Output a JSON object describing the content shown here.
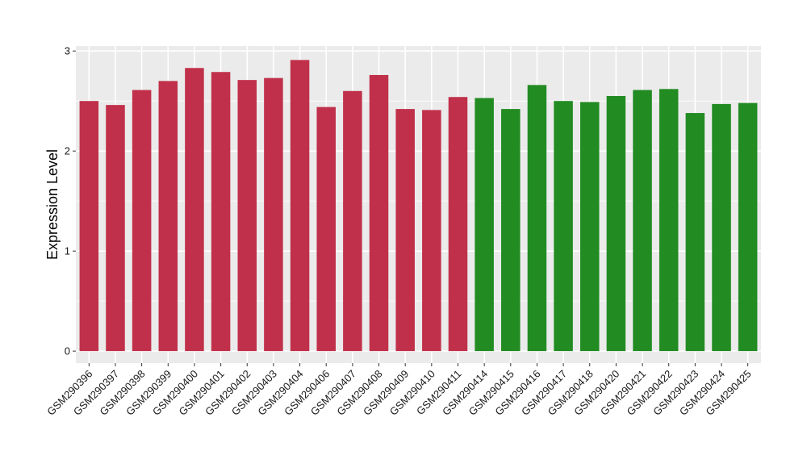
{
  "chart_data": {
    "type": "bar",
    "title": "",
    "xlabel": "",
    "ylabel": "Expression Level",
    "ylim": [
      -0.12,
      3.05
    ],
    "yticks": [
      0,
      1,
      2,
      3
    ],
    "grid": true,
    "legend": "none",
    "colors": {
      "group1": "#C0304A",
      "group2": "#228B22",
      "panel": "#EBEBEB",
      "grid": "#FFFFFF"
    },
    "categories": [
      "GSM290396",
      "GSM290397",
      "GSM290398",
      "GSM290399",
      "GSM290400",
      "GSM290401",
      "GSM290402",
      "GSM290403",
      "GSM290404",
      "GSM290406",
      "GSM290407",
      "GSM290408",
      "GSM290409",
      "GSM290410",
      "GSM290411",
      "GSM290414",
      "GSM290415",
      "GSM290416",
      "GSM290417",
      "GSM290418",
      "GSM290420",
      "GSM290421",
      "GSM290422",
      "GSM290423",
      "GSM290424",
      "GSM290425"
    ],
    "values": [
      2.5,
      2.46,
      2.61,
      2.7,
      2.83,
      2.79,
      2.71,
      2.73,
      2.91,
      2.44,
      2.6,
      2.76,
      2.42,
      2.41,
      2.54,
      2.53,
      2.42,
      2.66,
      2.5,
      2.49,
      2.55,
      2.61,
      2.62,
      2.38,
      2.47,
      2.48
    ],
    "groups": [
      "group1",
      "group1",
      "group1",
      "group1",
      "group1",
      "group1",
      "group1",
      "group1",
      "group1",
      "group1",
      "group1",
      "group1",
      "group1",
      "group1",
      "group1",
      "group2",
      "group2",
      "group2",
      "group2",
      "group2",
      "group2",
      "group2",
      "group2",
      "group2",
      "group2",
      "group2"
    ]
  }
}
